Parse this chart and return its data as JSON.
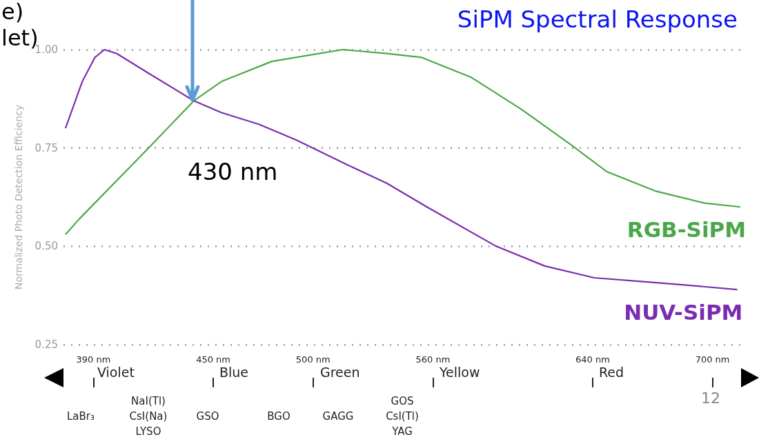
{
  "chart_data": {
    "type": "line",
    "title": "SiPM Spectral Response",
    "ylabel": "Normalized Photo Detection Efficiency",
    "xlim": [
      375,
      715
    ],
    "xticks": [
      {
        "value": 390,
        "label": "390 nm"
      },
      {
        "value": 450,
        "label": "450 nm"
      },
      {
        "value": 500,
        "label": "500 nm"
      },
      {
        "value": 560,
        "label": "560 nm"
      },
      {
        "value": 640,
        "label": "640 nm"
      },
      {
        "value": 700,
        "label": "700 nm"
      }
    ],
    "ylim": [
      0.25,
      1.0
    ],
    "yticks": [
      {
        "value": 0.25,
        "label": "0.25"
      },
      {
        "value": 0.5,
        "label": "0.50"
      },
      {
        "value": 0.75,
        "label": "0.75"
      },
      {
        "value": 1.0,
        "label": "1.00"
      }
    ],
    "grid": "y",
    "marker": "none",
    "line_style": "solid",
    "legend": false,
    "series": [
      {
        "name": "RGB-SiPM",
        "color": "#4aa84a",
        "x": [
          376,
          383,
          417.6,
          440.3,
          454.5,
          479.3,
          514.8,
          537,
          554.5,
          579,
          603.8,
          628.6,
          647,
          671.7,
          696,
          714
        ],
        "values": [
          0.53,
          0.57,
          0.75,
          0.87,
          0.92,
          0.97,
          1.0,
          0.99,
          0.98,
          0.93,
          0.85,
          0.76,
          0.69,
          0.64,
          0.61,
          0.6
        ]
      },
      {
        "name": "NUV-SiPM",
        "color": "#7a2db0",
        "x": [
          376,
          384.5,
          390.7,
          395.5,
          401.7,
          417.6,
          440.3,
          454,
          473,
          491.7,
          516,
          537,
          557,
          591.7,
          616,
          640.7,
          665.5,
          690,
          712.4
        ],
        "values": [
          0.8,
          0.92,
          0.98,
          1.0,
          0.99,
          0.94,
          0.87,
          0.84,
          0.81,
          0.77,
          0.71,
          0.66,
          0.6,
          0.5,
          0.45,
          0.42,
          0.41,
          0.4,
          0.39
        ]
      }
    ],
    "annotations": [
      "Violet",
      "Blue",
      "Green",
      "Yellow",
      "Red",
      "LaBr₃",
      "NaI(Tl)\nCsI(Na)\nLYSO",
      "GSO",
      "BGO",
      "GAGG",
      "GOS\nCsI(Tl)\nYAG",
      "e)",
      "let)",
      "430 nm",
      "12"
    ]
  }
}
